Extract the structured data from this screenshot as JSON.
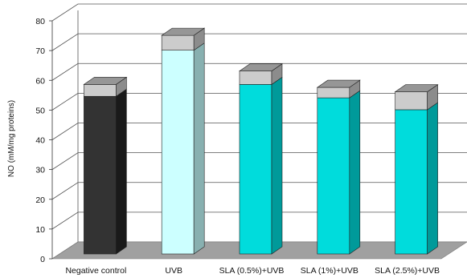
{
  "chart_data": {
    "type": "bar",
    "stacked": true,
    "three_d": true,
    "ylabel": "NO (mM/mg proteins)",
    "xlabel": "",
    "ylim": [
      0,
      80
    ],
    "yticks": [
      0,
      10,
      20,
      30,
      40,
      50,
      60,
      70,
      80
    ],
    "grid": true,
    "categories": [
      "Negative control",
      "UVB",
      "SLA (0.5%)+UVB",
      "SLA (1%)+UVB",
      "SLA (2.5%)+UVB"
    ],
    "series": [
      {
        "values": [
          53,
          68.5,
          57,
          52.5,
          48.5
        ]
      },
      {
        "values": [
          4,
          5,
          4.5,
          3.5,
          6
        ]
      }
    ],
    "bar_colors": {
      "front": [
        "#333333",
        "#ccffff",
        "#00dcdc",
        "#00dcdc",
        "#00dcdc"
      ],
      "side": [
        "#1a1a1a",
        "#88b0b0",
        "#009a9a",
        "#009a9a",
        "#009a9a"
      ],
      "top": [
        "#1a1a1a",
        "#a0c0c0",
        "#00b0b0",
        "#00b0b0",
        "#00b0b0"
      ]
    },
    "error_cap_colors": {
      "front": "#cccccc",
      "side": "#8c8c8c",
      "top": "#969696"
    },
    "floor_color": "#a0a0a0"
  }
}
